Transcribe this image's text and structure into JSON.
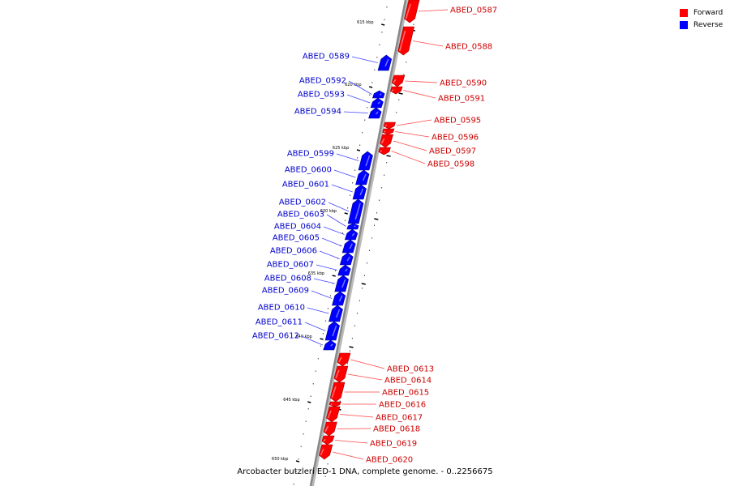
{
  "legend": {
    "forward": {
      "label": "Forward",
      "color": "#ff0000"
    },
    "reverse": {
      "label": "Reverse",
      "color": "#0000ff"
    }
  },
  "caption": "Arcobacter butzleri ED-1 DNA, complete genome. - 0..2256675",
  "colors": {
    "forward_label": "#cc0000",
    "reverse_label": "#0000cc",
    "backbone": "#888888"
  },
  "ticks": [
    {
      "kbp": 615,
      "label": "615 kbp"
    },
    {
      "kbp": 620,
      "label": "620 kbp"
    },
    {
      "kbp": 625,
      "label": "625 kbp"
    },
    {
      "kbp": 630,
      "label": "630 kbp"
    },
    {
      "kbp": 635,
      "label": "635 kbp"
    },
    {
      "kbp": 640,
      "label": "640 kbp"
    },
    {
      "kbp": 645,
      "label": "645 kbp"
    },
    {
      "kbp": 650,
      "label": "650 kbp"
    }
  ],
  "genes": [
    {
      "name": "ABED_0587",
      "strand": "forward"
    },
    {
      "name": "ABED_0588",
      "strand": "forward"
    },
    {
      "name": "ABED_0589",
      "strand": "reverse"
    },
    {
      "name": "ABED_0590",
      "strand": "forward"
    },
    {
      "name": "ABED_0591",
      "strand": "forward"
    },
    {
      "name": "ABED_0592",
      "strand": "reverse"
    },
    {
      "name": "ABED_0593",
      "strand": "reverse"
    },
    {
      "name": "ABED_0594",
      "strand": "reverse"
    },
    {
      "name": "ABED_0595",
      "strand": "forward"
    },
    {
      "name": "ABED_0596",
      "strand": "forward"
    },
    {
      "name": "ABED_0597",
      "strand": "forward"
    },
    {
      "name": "ABED_0598",
      "strand": "forward"
    },
    {
      "name": "ABED_0599",
      "strand": "reverse"
    },
    {
      "name": "ABED_0600",
      "strand": "reverse"
    },
    {
      "name": "ABED_0601",
      "strand": "reverse"
    },
    {
      "name": "ABED_0602",
      "strand": "reverse"
    },
    {
      "name": "ABED_0603",
      "strand": "reverse"
    },
    {
      "name": "ABED_0604",
      "strand": "reverse"
    },
    {
      "name": "ABED_0605",
      "strand": "reverse"
    },
    {
      "name": "ABED_0606",
      "strand": "reverse"
    },
    {
      "name": "ABED_0607",
      "strand": "reverse"
    },
    {
      "name": "ABED_0608",
      "strand": "reverse"
    },
    {
      "name": "ABED_0609",
      "strand": "reverse"
    },
    {
      "name": "ABED_0610",
      "strand": "reverse"
    },
    {
      "name": "ABED_0611",
      "strand": "reverse"
    },
    {
      "name": "ABED_0612",
      "strand": "reverse"
    },
    {
      "name": "ABED_0613",
      "strand": "forward"
    },
    {
      "name": "ABED_0614",
      "strand": "forward"
    },
    {
      "name": "ABED_0615",
      "strand": "forward"
    },
    {
      "name": "ABED_0616",
      "strand": "forward"
    },
    {
      "name": "ABED_0617",
      "strand": "forward"
    },
    {
      "name": "ABED_0618",
      "strand": "forward"
    },
    {
      "name": "ABED_0619",
      "strand": "forward"
    },
    {
      "name": "ABED_0620",
      "strand": "forward"
    }
  ]
}
